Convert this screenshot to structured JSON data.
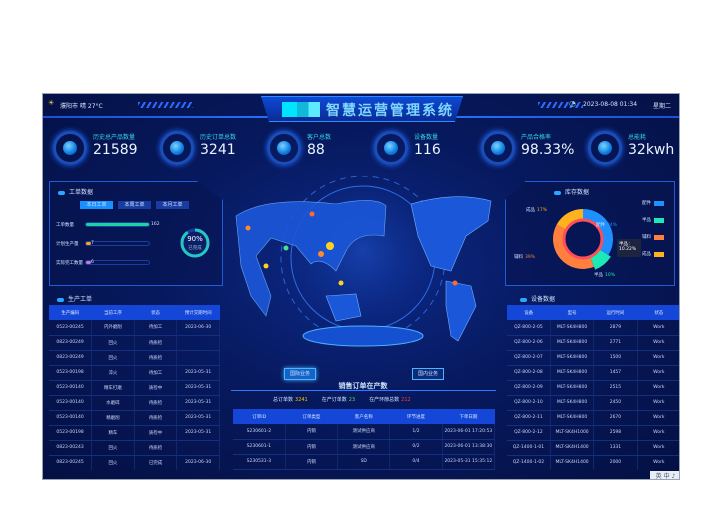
{
  "header": {
    "city": "濮阳市",
    "weather": "晴",
    "temperature": "27°C",
    "title": "智慧运营管理系统",
    "datetime": "2023-08-08 01:34",
    "weekday": "星期二"
  },
  "kpis": [
    {
      "label": "历史总产品数量",
      "value": "21589"
    },
    {
      "label": "历史订单总数",
      "value": "3241"
    },
    {
      "label": "客户总数",
      "value": "88"
    },
    {
      "label": "设备数量",
      "value": "116"
    },
    {
      "label": "产品合格率",
      "value": "98.33%"
    },
    {
      "label": "总能耗",
      "value": "32kwh"
    }
  ],
  "work_orders": {
    "title": "工单数据",
    "tabs": [
      "本日工单",
      "本周工单",
      "本月工单"
    ],
    "active_tab": 0,
    "bars": [
      {
        "label": "工单数量",
        "value": "162",
        "fill": 1.0,
        "color": "#19d3a2"
      },
      {
        "label": "计划生产量",
        "value": "7",
        "fill": 0.05,
        "color": "#f5a623"
      },
      {
        "label": "实际完工数量",
        "value": "6",
        "fill": 0.05,
        "color": "#c07be0"
      }
    ],
    "gauge": {
      "value": "90%",
      "label": "已完成",
      "fraction": 0.9
    }
  },
  "production": {
    "title": "生产工单",
    "columns": [
      "生产编码",
      "当前工序",
      "状态",
      "预计交期时间"
    ],
    "rows": [
      [
        "0523-00245",
        "内外磨削",
        "待加工",
        "2023-06-30"
      ],
      [
        "0823-00249",
        "回火",
        "待质检",
        ""
      ],
      [
        "0823-00249",
        "回火",
        "待质检",
        ""
      ],
      [
        "0523-00198",
        "淬火",
        "待加工",
        "2023-05-31"
      ],
      [
        "0523-00140",
        "精车打磨",
        "质检中",
        "2023-05-31"
      ],
      [
        "0523-00140",
        "水磨碎",
        "待质检",
        "2023-05-31"
      ],
      [
        "0523-00140",
        "精磨削",
        "待质检",
        "2023-05-31"
      ],
      [
        "0523-00198",
        "精车",
        "质检中",
        "2023-05-31"
      ],
      [
        "0823-00243",
        "回火",
        "待质检",
        ""
      ],
      [
        "0823-00245",
        "回火",
        "已完成",
        "2023-06-30"
      ]
    ]
  },
  "sales": {
    "tabs": [
      "国际业务",
      "国内业务"
    ],
    "active_tab": 0,
    "title": "销售订单在产数",
    "stats": [
      {
        "label": "总订单数",
        "value": "3241",
        "color": "#f5c400"
      },
      {
        "label": "在产订单数",
        "value": "23",
        "color": "#4fdc4f"
      },
      {
        "label": "在产环節总数",
        "value": "212",
        "color": "#ff3b3b"
      }
    ],
    "columns": [
      "订单ID",
      "订单类型",
      "客户名称",
      "环节进度",
      "下单日期"
    ],
    "rows": [
      [
        "S230601-2",
        "内销",
        "测试供应商",
        "1/2",
        "2023-06-01 17:20:53"
      ],
      [
        "S230601-1",
        "内销",
        "测试供应商",
        "0/2",
        "2023-06-01 13:38:30"
      ],
      [
        "S230531-3",
        "内销",
        "SD",
        "0/4",
        "2023-05-31 15:35:12"
      ]
    ]
  },
  "inventory": {
    "title": "库存数据",
    "tooltip": {
      "label": "半品：",
      "value": "10.22%"
    },
    "chart_data": {
      "type": "pie",
      "series": [
        {
          "name": "配件",
          "value": 34,
          "color": "#1e90ff"
        },
        {
          "name": "半品",
          "value": 10,
          "color": "#1de9b6"
        },
        {
          "name": "辅料",
          "value": 39,
          "color": "#ff7f3f"
        },
        {
          "name": "成品",
          "value": 17,
          "color": "#ffb21e"
        }
      ]
    }
  },
  "equipment": {
    "title": "设备数据",
    "columns": [
      "设备",
      "型号",
      "运行时间",
      "状态"
    ],
    "rows": [
      [
        "QZ-800-2-05",
        "MLT-SK4H800",
        "2879",
        "Work"
      ],
      [
        "QZ-800-2-06",
        "MLT-SK4H800",
        "2771",
        "Work"
      ],
      [
        "QZ-800-2-07",
        "MLT-SK4H800",
        "1500",
        "Work"
      ],
      [
        "QZ-800-2-08",
        "MLT-SK4H800",
        "1457",
        "Work"
      ],
      [
        "QZ-800-2-09",
        "MLT-SK4H800",
        "2515",
        "Work"
      ],
      [
        "QZ-800-2-10",
        "MLT-SK4H800",
        "2450",
        "Work"
      ],
      [
        "QZ-800-2-11",
        "MLT-SK4H800",
        "2670",
        "Work"
      ],
      [
        "QZ-800-2-12",
        "MLT-SK4H1000",
        "2598",
        "Work"
      ],
      [
        "QZ-1400-1-01",
        "MLT-SK4H1400",
        "1331",
        "Work"
      ],
      [
        "QZ-1400-1-02",
        "MLT-SK4H1400",
        "2000",
        "Work"
      ]
    ]
  },
  "watermark": "英 中 ♪"
}
